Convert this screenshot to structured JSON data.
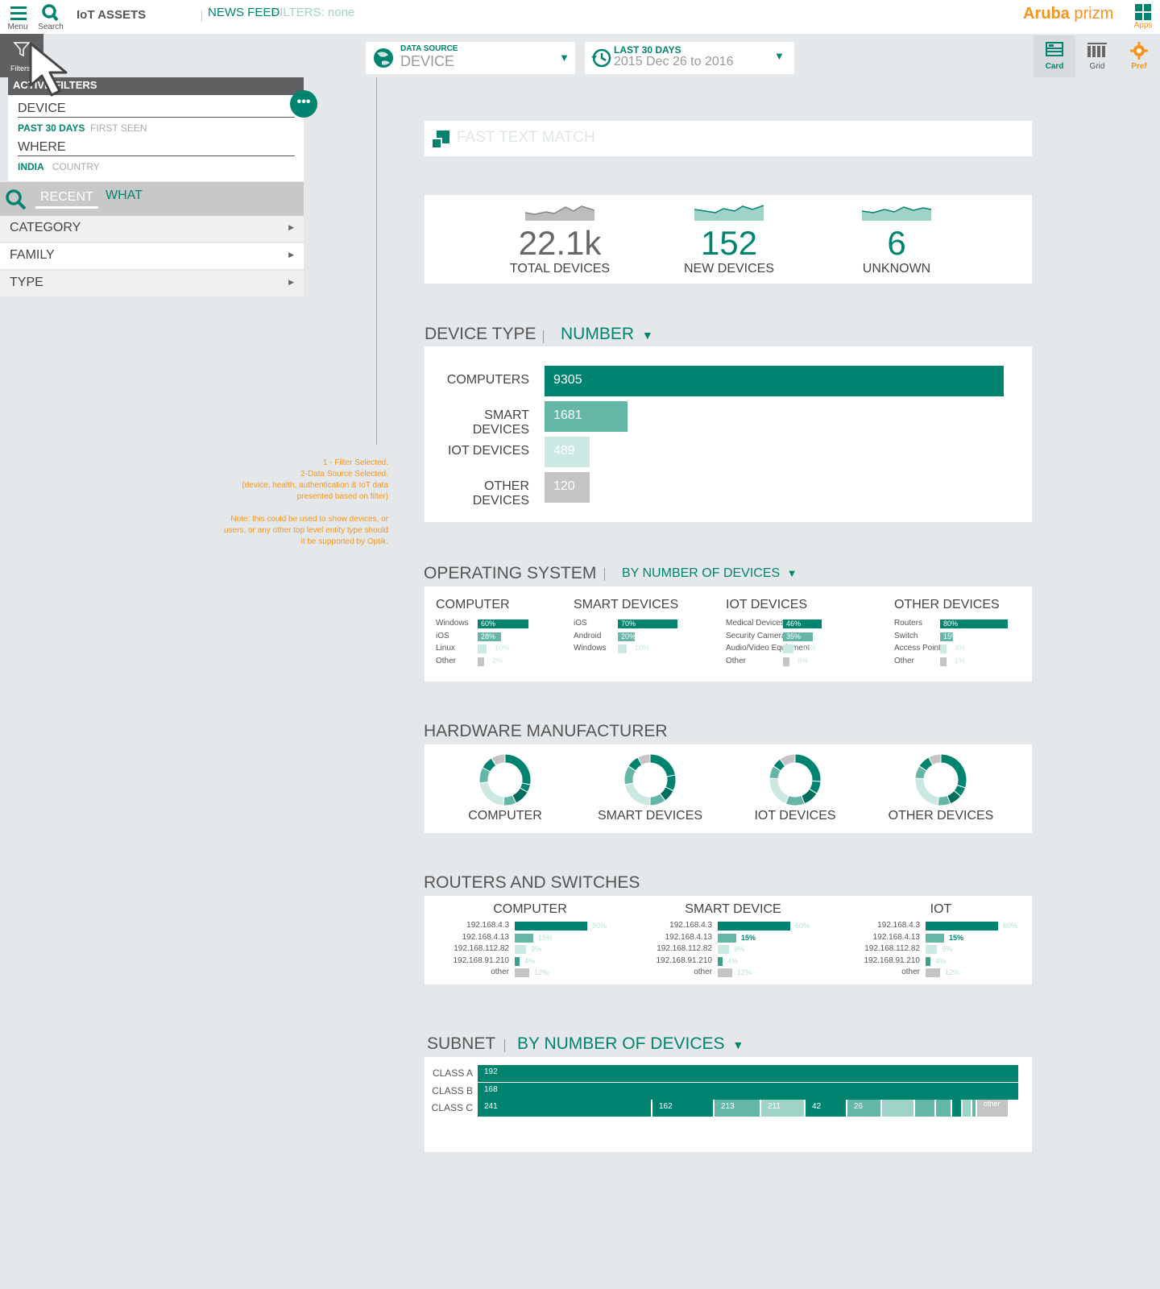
{
  "topbar": {
    "menu_label": "Menu",
    "search_label": "Search",
    "title": "IoT ASSETS",
    "newsfeed": "NEWS FEED",
    "filters_status": "FILTERS: none",
    "brand_bold": "Aruba",
    "brand_light": "prizm",
    "apps_label": "Apps"
  },
  "filter_tab": {
    "label": "Filters"
  },
  "data_source": {
    "small": "DATA SOURCE",
    "value": "DEVICE"
  },
  "date_range": {
    "small": "LAST 30 DAYS",
    "value": "2015 Dec 26  to  2016"
  },
  "views": {
    "card": "Card",
    "grid": "Grid",
    "pref": "Pref"
  },
  "active_filters": {
    "title": "ACTIVE FILTERS",
    "device": "DEVICE",
    "device_sub_1": "PAST 30 DAYS",
    "device_sub_2": "FIRST SEEN",
    "where": "WHERE",
    "where_sub_1": "INDIA",
    "where_sub_2": "COUNTRY",
    "more": "•••"
  },
  "search_tabs": {
    "recent": "RECENT",
    "what": "WHAT"
  },
  "categories": [
    "CATEGORY",
    "FAMILY",
    "TYPE"
  ],
  "annotation": [
    "1 - Filter Selected.",
    "2-Data Source Selected.",
    "(device, health, authentication & IoT data",
    "presented based on filter)",
    "",
    "Note: this could be used to show devices, or",
    "users, or any other top level entity type should",
    "it be supported by Optik."
  ],
  "fast_text": {
    "placeholder": "FAST TEXT MATCH"
  },
  "kpis": [
    {
      "value": "22.1k",
      "label": "TOTAL DEVICES",
      "color": "#666666"
    },
    {
      "value": "152",
      "label": "NEW DEVICES",
      "color": "#00846f"
    },
    {
      "value": "6",
      "label": "UNKNOWN",
      "color": "#00846f"
    }
  ],
  "device_type": {
    "title": "DEVICE TYPE",
    "dropdown": "NUMBER",
    "bars": [
      {
        "label": "COMPUTERS",
        "value": 9305,
        "color": "#00846f"
      },
      {
        "label": "SMART DEVICES",
        "value": 1681,
        "color": "#66b6a8"
      },
      {
        "label": "IOT DEVICES",
        "value": 489,
        "color": "#cbe8e2"
      },
      {
        "label": "OTHER DEVICES",
        "value": 120,
        "color": "#c4c4c6"
      }
    ]
  },
  "operating_system": {
    "title": "OPERATING SYSTEM",
    "dropdown": "BY NUMBER OF DEVICES",
    "columns": [
      {
        "title": "COMPUTER",
        "rows": [
          {
            "label": "Windows",
            "pct": 60
          },
          {
            "label": "iOS",
            "pct": 28
          },
          {
            "label": "Linux",
            "pct": 10
          },
          {
            "label": "Other",
            "pct": 2
          }
        ]
      },
      {
        "title": "SMART DEVICES",
        "rows": [
          {
            "label": "iOS",
            "pct": 70
          },
          {
            "label": "Android",
            "pct": 20
          },
          {
            "label": "Windows",
            "pct": 10
          }
        ]
      },
      {
        "title": "IOT DEVICES",
        "rows": [
          {
            "label": "Medical Devices",
            "pct": 46
          },
          {
            "label": "Security Cameras",
            "pct": 35
          },
          {
            "label": "Audio/Video Equipment",
            "pct": 12
          },
          {
            "label": "Other",
            "pct": 8
          }
        ]
      },
      {
        "title": "OTHER DEVICES",
        "rows": [
          {
            "label": "Routers",
            "pct": 80
          },
          {
            "label": "Switch",
            "pct": 15
          },
          {
            "label": "Access Points",
            "pct": 4
          },
          {
            "label": "Other",
            "pct": 1
          }
        ]
      }
    ]
  },
  "hardware": {
    "title": "HARDWARE MANUFACTURER",
    "donuts": [
      "COMPUTER",
      "SMART DEVICES",
      "IOT DEVICES",
      "OTHER DEVICES"
    ]
  },
  "routers": {
    "title": "ROUTERS AND SWITCHES",
    "groups": [
      {
        "title": "COMPUTER"
      },
      {
        "title": "SMART DEVICE"
      },
      {
        "title": "IOT"
      }
    ],
    "rows": [
      {
        "ip": "192.168.4.3",
        "pct": 60
      },
      {
        "ip": "192.168.4.13",
        "pct": 15
      },
      {
        "ip": "192.168.112.82",
        "pct": 9
      },
      {
        "ip": "192.168.91.210",
        "pct": 4
      },
      {
        "ip": "other",
        "pct": 12
      }
    ]
  },
  "subnet": {
    "title": "SUBNET",
    "dropdown": "BY NUMBER OF DEVICES",
    "class_a": {
      "label": "CLASS A",
      "value": "192"
    },
    "class_b": {
      "label": "CLASS B",
      "value": "168"
    },
    "class_c": {
      "label": "CLASS C",
      "segments": [
        "241",
        "162",
        "213",
        "211",
        "42",
        "26",
        "",
        "",
        "",
        "",
        "",
        "",
        "other"
      ]
    }
  },
  "colors": {
    "teal": "#00846f",
    "teal_mid": "#66b6a8",
    "teal_light": "#cbe8e2",
    "grey": "#c4c4c6",
    "orange": "#f7941d"
  }
}
